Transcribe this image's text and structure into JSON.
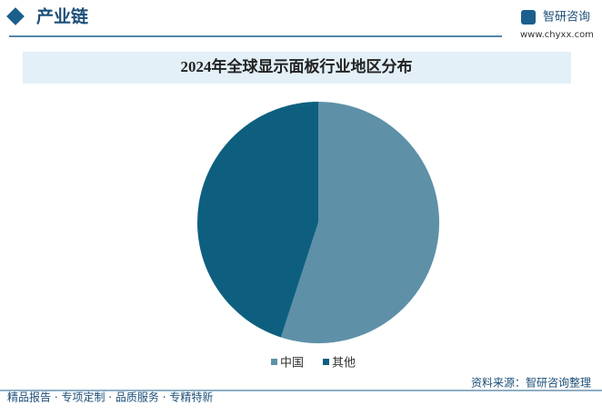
{
  "header": {
    "title": "产业链",
    "brand": "智研咨询",
    "url": "www.chyxx.com"
  },
  "chart_data": {
    "type": "pie",
    "title": "2024年全球显示面板行业地区分布",
    "categories": [
      "中国",
      "其他"
    ],
    "values": [
      55,
      45
    ],
    "colors": [
      "#5e90a8",
      "#0e5f7f"
    ]
  },
  "footer": {
    "left": "精品报告 · 专项定制 · 品质服务 · 专精特新",
    "source": "资料来源：智研咨询整理"
  }
}
